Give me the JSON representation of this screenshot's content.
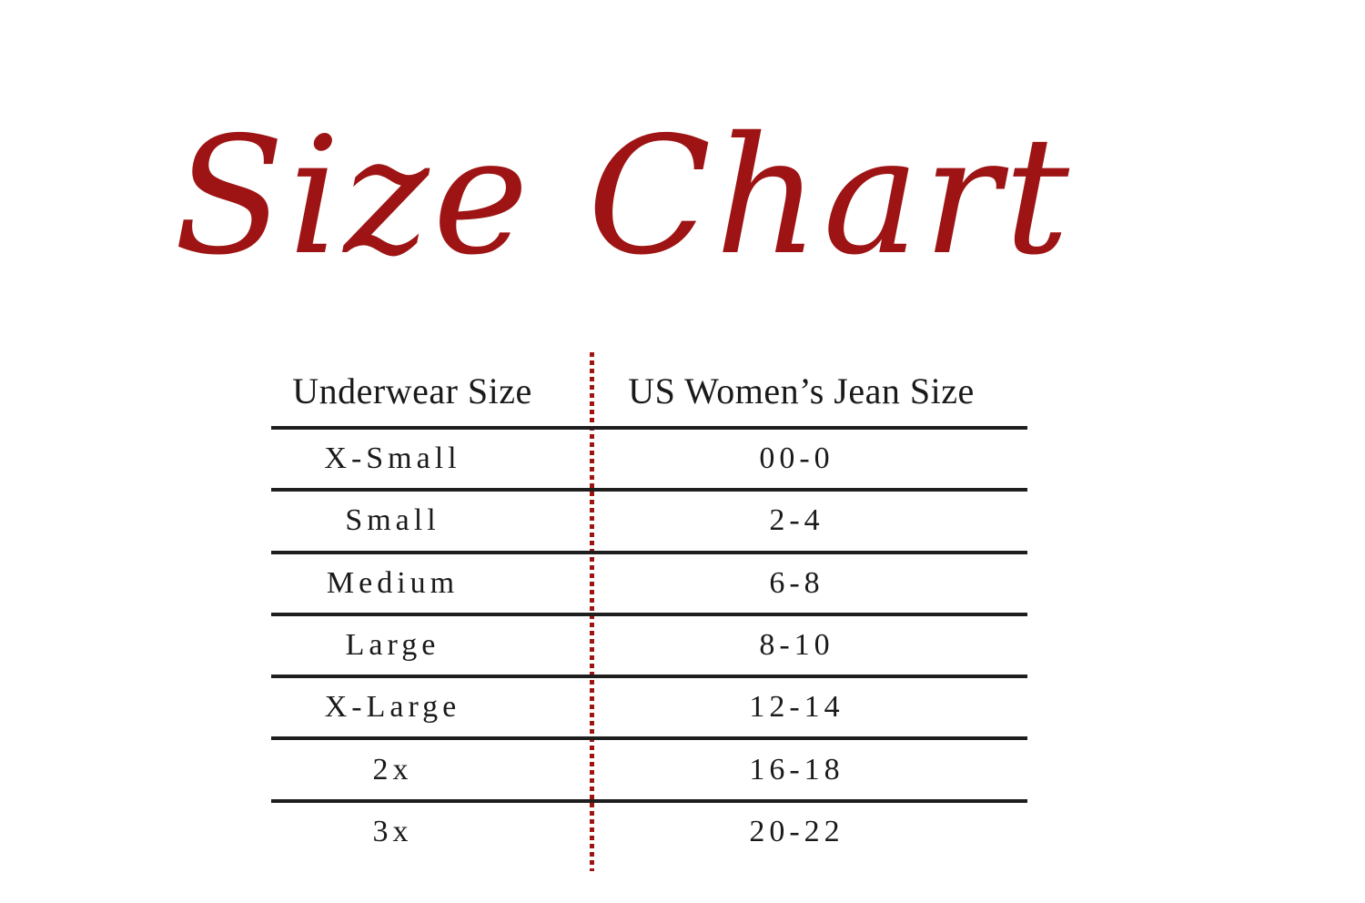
{
  "title": "Size Chart",
  "colors": {
    "accent_red": "#9e1414",
    "rule_black": "#1e1e1e",
    "text": "#1a1a1a",
    "background": "#ffffff"
  },
  "chart_data": {
    "type": "table",
    "title": "Size Chart",
    "columns": [
      "Underwear Size",
      "US Women’s Jean Size"
    ],
    "rows": [
      [
        "X-Small",
        "00-0"
      ],
      [
        "Small",
        "2-4"
      ],
      [
        "Medium",
        "6-8"
      ],
      [
        "Large",
        "8-10"
      ],
      [
        "X-Large",
        "12-14"
      ],
      [
        "2x",
        "16-18"
      ],
      [
        "3x",
        "20-22"
      ]
    ],
    "layout": {
      "column_divider": "dotted vertical red line",
      "row_rules": "solid black horizontal lines",
      "grid": "horizontal only"
    }
  }
}
